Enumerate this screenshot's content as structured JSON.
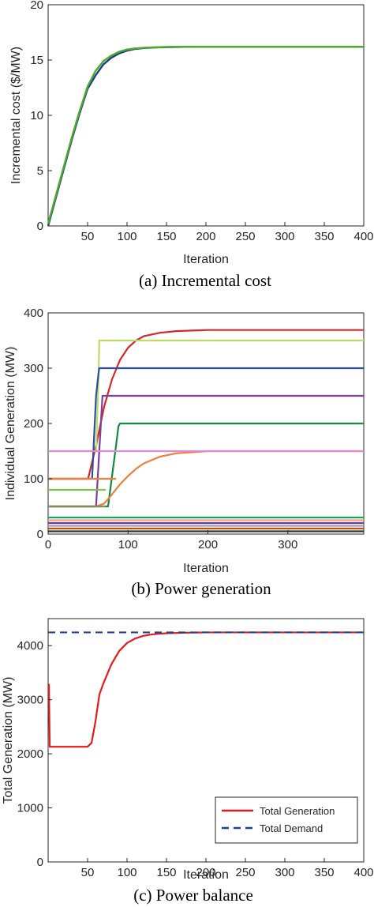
{
  "chart_data": [
    {
      "type": "line",
      "caption": "(a)  Incremental cost",
      "xlabel": "Iteration",
      "ylabel": "Incremental cost ($/MW)",
      "xlim": [
        0,
        400
      ],
      "ylim": [
        0,
        20
      ],
      "xticks": [
        50,
        100,
        150,
        200,
        250,
        300,
        350,
        400
      ],
      "yticks": [
        0,
        5,
        10,
        15,
        20
      ],
      "grid": false,
      "series": [
        {
          "color": "#1f3a93",
          "x": [
            0,
            10,
            20,
            30,
            40,
            50,
            60,
            70,
            80,
            90,
            100,
            110,
            120,
            130,
            140,
            150,
            175,
            200,
            250,
            300,
            350,
            400
          ],
          "y": [
            0,
            2.6,
            5.2,
            7.8,
            10.2,
            12.4,
            13.6,
            14.6,
            15.2,
            15.6,
            15.85,
            16.0,
            16.08,
            16.12,
            16.15,
            16.17,
            16.19,
            16.2,
            16.2,
            16.2,
            16.2,
            16.2
          ]
        },
        {
          "color": "#4dac26",
          "x": [
            0,
            10,
            20,
            30,
            40,
            50,
            60,
            70,
            80,
            90,
            100,
            110,
            120,
            130,
            140,
            150,
            175,
            200,
            250,
            300,
            350,
            400
          ],
          "y": [
            0.2,
            2.8,
            5.4,
            8.0,
            10.4,
            12.6,
            14.0,
            14.9,
            15.4,
            15.75,
            15.95,
            16.05,
            16.1,
            16.14,
            16.16,
            16.18,
            16.19,
            16.2,
            16.2,
            16.2,
            16.2,
            16.2
          ]
        }
      ]
    },
    {
      "type": "line",
      "caption": "(b)  Power generation",
      "xlabel": "Iteration",
      "ylabel": "Individual Generation (MW)",
      "xlim": [
        0,
        395
      ],
      "ylim": [
        0,
        400
      ],
      "xticks": [
        0,
        100,
        200,
        300
      ],
      "yticks": [
        0,
        100,
        200,
        300,
        400
      ],
      "grid": false,
      "series": [
        {
          "color": "#d62728",
          "x": [
            0,
            50,
            60,
            70,
            80,
            90,
            100,
            110,
            120,
            140,
            160,
            180,
            200,
            250,
            300,
            350,
            395
          ],
          "y": [
            100,
            100,
            160,
            230,
            280,
            315,
            337,
            350,
            358,
            364,
            367,
            368,
            369,
            369,
            369,
            369,
            369
          ]
        },
        {
          "color": "#bcdc6a",
          "x": [
            0,
            60,
            63,
            64,
            395
          ],
          "y": [
            150,
            150,
            280,
            350,
            350
          ]
        },
        {
          "color": "#2b4ea2",
          "x": [
            0,
            55,
            60,
            63,
            64,
            395
          ],
          "y": [
            100,
            100,
            250,
            290,
            300,
            300
          ]
        },
        {
          "color": "#7e3f98",
          "x": [
            0,
            60,
            66,
            68,
            395
          ],
          "y": [
            50,
            50,
            200,
            250,
            250
          ]
        },
        {
          "color": "#138a3e",
          "x": [
            0,
            75,
            85,
            88,
            90,
            395
          ],
          "y": [
            50,
            50,
            160,
            195,
            200,
            200
          ]
        },
        {
          "color": "#ef7f3a",
          "x": [
            0,
            60,
            70,
            80,
            90,
            100,
            110,
            120,
            140,
            160,
            180,
            200,
            250,
            395
          ],
          "y": [
            50,
            50,
            55,
            72,
            90,
            105,
            118,
            128,
            140,
            146,
            148,
            150,
            150,
            150
          ]
        },
        {
          "color": "#e08ad4",
          "x": [
            0,
            60,
            395
          ],
          "y": [
            150,
            150,
            150
          ]
        },
        {
          "color": "#ef7f3a",
          "x": [
            0,
            85
          ],
          "y": [
            100,
            100
          ]
        },
        {
          "color": "#7bc34a",
          "x": [
            0,
            72
          ],
          "y": [
            80,
            80
          ]
        },
        {
          "color": "#8a8a5c",
          "x": [
            0,
            72
          ],
          "y": [
            50,
            50
          ]
        },
        {
          "color": "#1aa260",
          "x": [
            0,
            395
          ],
          "y": [
            30,
            30
          ]
        },
        {
          "color": "#6a3d9a",
          "x": [
            0,
            395
          ],
          "y": [
            20,
            20
          ]
        },
        {
          "color": "#f4a582",
          "x": [
            0,
            395
          ],
          "y": [
            25,
            25
          ]
        },
        {
          "color": "#9e9ac8",
          "x": [
            0,
            395
          ],
          "y": [
            15,
            15
          ]
        },
        {
          "color": "#b35806",
          "x": [
            0,
            395
          ],
          "y": [
            10,
            10
          ]
        },
        {
          "color": "#333333",
          "x": [
            0,
            395
          ],
          "y": [
            5,
            5
          ]
        }
      ]
    },
    {
      "type": "line",
      "caption": "(c)  Power balance",
      "xlabel": "Iteration",
      "ylabel": "Total Generation (MW)",
      "xlim": [
        0,
        400
      ],
      "ylim": [
        0,
        4500
      ],
      "xticks": [
        50,
        100,
        150,
        200,
        250,
        300,
        350,
        400
      ],
      "yticks": [
        0,
        1000,
        2000,
        3000,
        4000
      ],
      "grid": false,
      "legend": "lower-right",
      "series": [
        {
          "name": "Total Generation",
          "color": "#e41a1c",
          "style": "solid",
          "x": [
            0,
            1,
            2,
            50,
            55,
            60,
            65,
            70,
            80,
            90,
            100,
            110,
            120,
            130,
            140,
            150,
            175,
            200,
            250,
            300,
            350,
            400
          ],
          "y": [
            3280,
            3280,
            2130,
            2130,
            2200,
            2600,
            3100,
            3300,
            3650,
            3900,
            4050,
            4130,
            4180,
            4205,
            4220,
            4230,
            4240,
            4245,
            4245,
            4245,
            4245,
            4245
          ]
        },
        {
          "name": "Total Demand",
          "color": "#1f3fa0",
          "style": "dashed",
          "x": [
            0,
            400
          ],
          "y": [
            4245,
            4245
          ]
        }
      ]
    }
  ]
}
